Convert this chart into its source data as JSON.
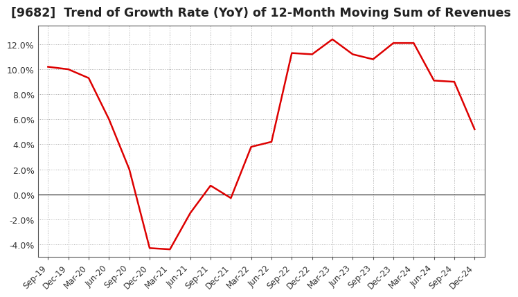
{
  "title": "[9682]  Trend of Growth Rate (YoY) of 12-Month Moving Sum of Revenues",
  "title_fontsize": 12.5,
  "line_color": "#dd0000",
  "background_color": "#ffffff",
  "grid_color": "#aaaaaa",
  "ylim": [
    -0.05,
    0.135
  ],
  "yticks": [
    -0.04,
    -0.02,
    0.0,
    0.02,
    0.04,
    0.06,
    0.08,
    0.1,
    0.12
  ],
  "dates": [
    "Sep-19",
    "Dec-19",
    "Mar-20",
    "Jun-20",
    "Sep-20",
    "Dec-20",
    "Mar-21",
    "Jun-21",
    "Sep-21",
    "Dec-21",
    "Mar-22",
    "Jun-22",
    "Sep-22",
    "Dec-22",
    "Mar-23",
    "Jun-23",
    "Sep-23",
    "Dec-23",
    "Mar-24",
    "Jun-24",
    "Sep-24",
    "Dec-24"
  ],
  "values": [
    0.102,
    0.1,
    0.093,
    0.06,
    0.02,
    -0.043,
    -0.044,
    -0.015,
    0.007,
    -0.003,
    0.038,
    0.042,
    0.113,
    0.112,
    0.124,
    0.112,
    0.108,
    0.121,
    0.121,
    0.091,
    0.09,
    0.052
  ]
}
